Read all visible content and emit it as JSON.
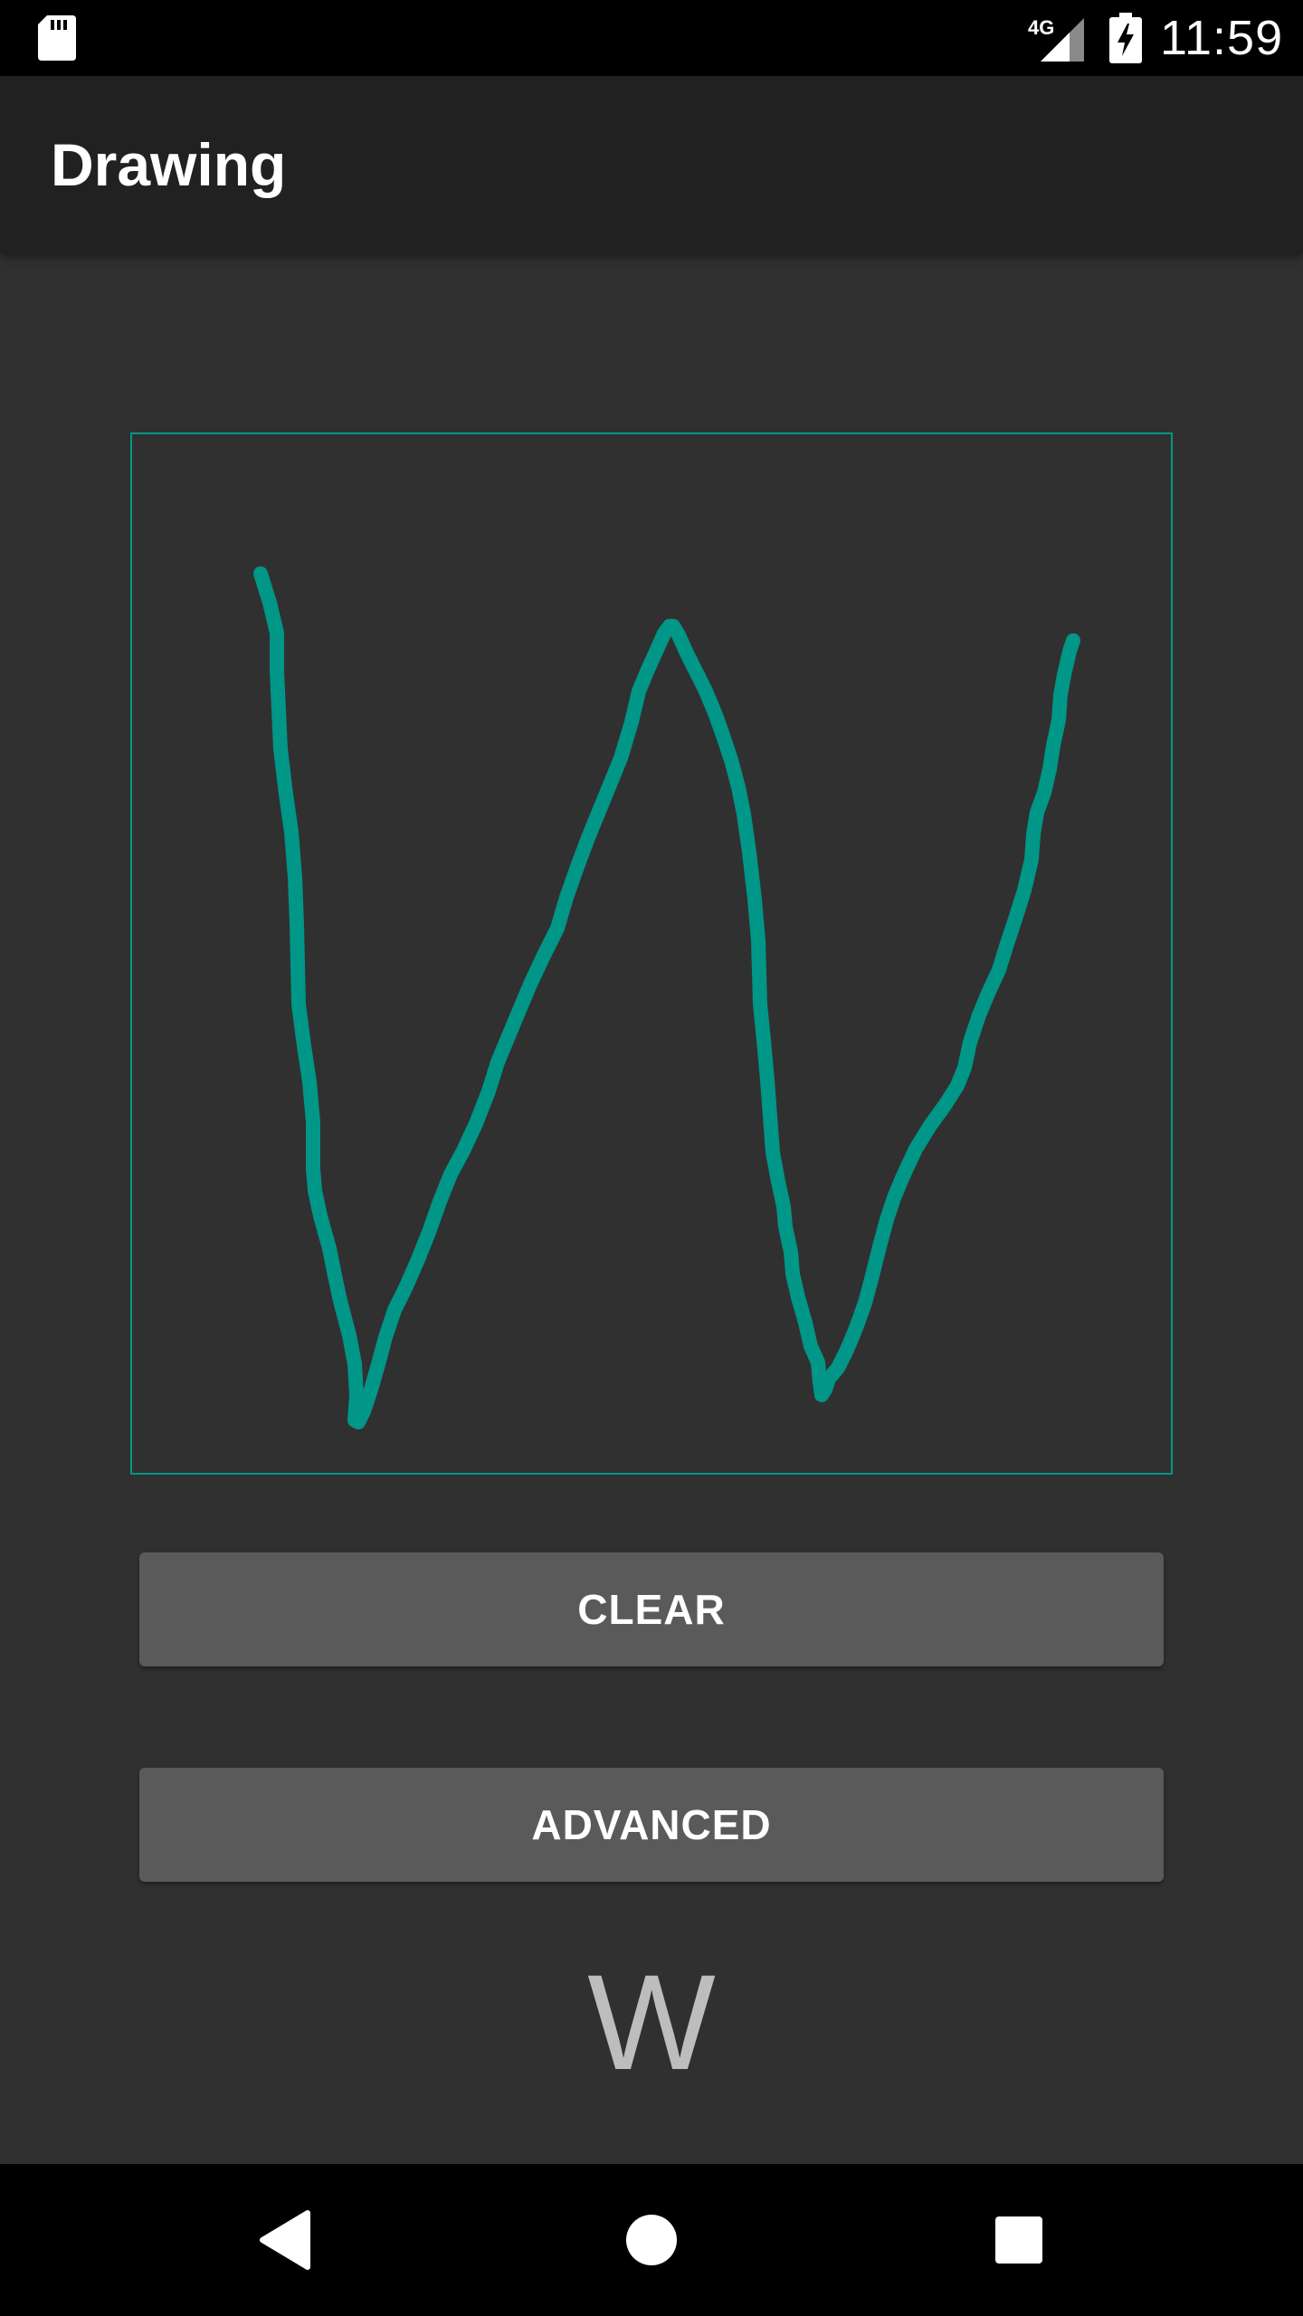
{
  "status_bar": {
    "time": "11:59",
    "network": "4G",
    "icons": [
      "sd-card-icon",
      "signal-icon",
      "battery-charging-icon"
    ]
  },
  "app_bar": {
    "title": "Drawing"
  },
  "canvas": {
    "stroke_color": "#009688",
    "border_color": "#009688",
    "background": "#303030"
  },
  "buttons": {
    "clear_label": "CLEAR",
    "advanced_label": "ADVANCED"
  },
  "result": {
    "recognized_text": "W"
  },
  "nav_bar": {
    "icons": [
      "back-icon",
      "home-icon",
      "recents-icon"
    ]
  },
  "colors": {
    "background": "#303030",
    "app_bar": "#212121",
    "button": "#5a5a5b",
    "accent": "#009688"
  }
}
